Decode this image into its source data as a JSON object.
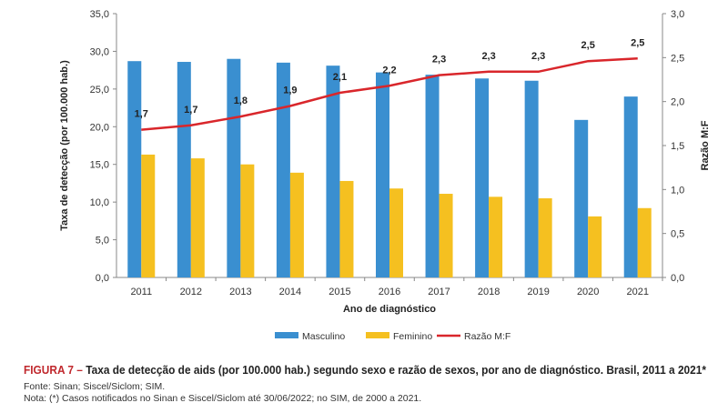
{
  "chart_data": {
    "type": "bar",
    "categories": [
      "2011",
      "2012",
      "2013",
      "2014",
      "2015",
      "2016",
      "2017",
      "2018",
      "2019",
      "2020",
      "2021"
    ],
    "series": [
      {
        "name": "Masculino",
        "kind": "bar",
        "axis": "left",
        "color": "#3a8fd0",
        "values": [
          28.7,
          28.6,
          29.0,
          28.5,
          28.1,
          27.2,
          26.9,
          26.4,
          26.1,
          20.9,
          24.0
        ]
      },
      {
        "name": "Feminino",
        "kind": "bar",
        "axis": "left",
        "color": "#f5c020",
        "values": [
          16.3,
          15.8,
          15.0,
          13.9,
          12.8,
          11.8,
          11.1,
          10.7,
          10.5,
          8.1,
          9.2
        ]
      },
      {
        "name": "Razão M:F",
        "kind": "line",
        "axis": "right",
        "color": "#d9262b",
        "values": [
          1.68,
          1.73,
          1.83,
          1.95,
          2.1,
          2.18,
          2.3,
          2.34,
          2.34,
          2.46,
          2.49
        ],
        "labels": [
          "1,7",
          "1,7",
          "1,8",
          "1,9",
          "2,1",
          "2,2",
          "2,3",
          "2,3",
          "2,3",
          "2,5",
          "2,5"
        ]
      }
    ],
    "xlabel": "Ano de diagnóstico",
    "ylabel": "Taxa de detecção (por 100.000 hab.)",
    "y2label": "Razão M:F",
    "ylim": [
      0,
      35
    ],
    "y2lim": [
      0,
      3
    ],
    "yticks": [
      "0,0",
      "5,0",
      "10,0",
      "15,0",
      "20,0",
      "25,0",
      "30,0",
      "35,0"
    ],
    "y2ticks": [
      "0,0",
      "0,5",
      "1,0",
      "1,5",
      "2,0",
      "2,5",
      "3,0"
    ],
    "grid": false,
    "legend": "bottom"
  },
  "caption": {
    "label": "FIGURA 7 –",
    "title": "Taxa de detecção de aids (por 100.000 hab.) segundo sexo e razão de sexos, por ano de diagnóstico. Brasil, 2011 a 2021*",
    "source": "Fonte: Sinan; Siscel/Siclom; SIM.",
    "note": "Nota: (*) Casos notificados no Sinan e Siscel/Siclom até 30/06/2022; no SIM, de 2000 a 2021."
  }
}
